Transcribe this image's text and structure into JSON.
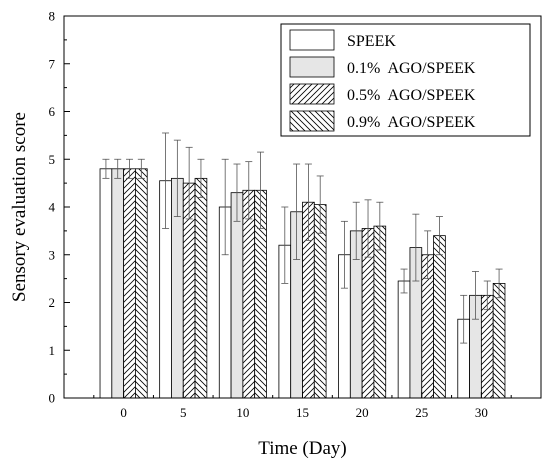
{
  "chart_data": {
    "type": "bar",
    "xlabel": "Time (Day)",
    "ylabel": "Sensory evaluation score",
    "categories": [
      "0",
      "5",
      "10",
      "15",
      "20",
      "25",
      "30"
    ],
    "ylim": [
      0,
      8
    ],
    "yticks": [
      "0",
      "1",
      "2",
      "3",
      "4",
      "5",
      "6",
      "7",
      "8"
    ],
    "legend_position": "top-right",
    "series": [
      {
        "name": "SPEEK",
        "pattern": "none",
        "fill": "#ffffff",
        "values": [
          4.8,
          4.55,
          4.0,
          3.2,
          3.0,
          2.45,
          1.65
        ],
        "errors": [
          0.2,
          1.0,
          1.0,
          0.8,
          0.7,
          0.25,
          0.5
        ]
      },
      {
        "name": "0.1%  AGO/SPEEK",
        "pattern": "solid",
        "fill": "#e6e6e6",
        "values": [
          4.8,
          4.6,
          4.3,
          3.9,
          3.5,
          3.15,
          2.15
        ],
        "errors": [
          0.2,
          0.8,
          0.6,
          1.0,
          0.6,
          0.7,
          0.5
        ]
      },
      {
        "name": "0.5%  AGO/SPEEK",
        "pattern": "forward-hatch",
        "fill": "#ffffff",
        "values": [
          4.8,
          4.5,
          4.35,
          4.1,
          3.55,
          3.0,
          2.15
        ],
        "errors": [
          0.2,
          0.75,
          0.6,
          0.8,
          0.6,
          0.5,
          0.3
        ]
      },
      {
        "name": "0.9%  AGO/SPEEK",
        "pattern": "back-hatch",
        "fill": "#ffffff",
        "values": [
          4.8,
          4.6,
          4.35,
          4.05,
          3.6,
          3.4,
          2.4
        ],
        "errors": [
          0.2,
          0.4,
          0.8,
          0.6,
          0.5,
          0.4,
          0.3
        ]
      }
    ]
  }
}
